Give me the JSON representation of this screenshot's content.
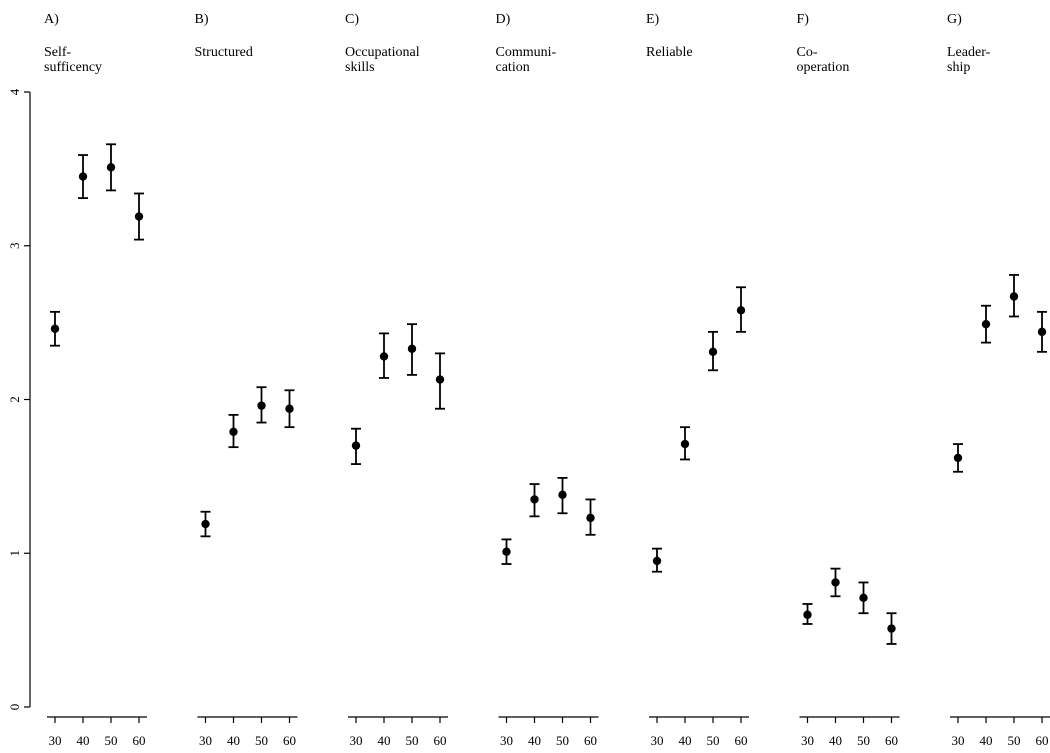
{
  "chart_data": {
    "type": "scatter",
    "subtype": "dot-with-error-bars",
    "grid": false,
    "legend": "none",
    "ylim": [
      0,
      4
    ],
    "y_ticks": [
      0,
      1,
      2,
      3,
      4
    ],
    "x_categories": [
      "30",
      "40",
      "50",
      "60"
    ],
    "point_color": "#000000",
    "panels": [
      {
        "letter": "A)",
        "title_lines": [
          "Self-",
          "sufficency"
        ],
        "points": [
          {
            "x": "30",
            "y": 2.46,
            "lo": 2.35,
            "hi": 2.57
          },
          {
            "x": "40",
            "y": 3.45,
            "lo": 3.31,
            "hi": 3.59
          },
          {
            "x": "50",
            "y": 3.51,
            "lo": 3.36,
            "hi": 3.66
          },
          {
            "x": "60",
            "y": 3.19,
            "lo": 3.04,
            "hi": 3.34
          }
        ]
      },
      {
        "letter": "B)",
        "title_lines": [
          "Structured"
        ],
        "points": [
          {
            "x": "30",
            "y": 1.19,
            "lo": 1.11,
            "hi": 1.27
          },
          {
            "x": "40",
            "y": 1.79,
            "lo": 1.69,
            "hi": 1.9
          },
          {
            "x": "50",
            "y": 1.96,
            "lo": 1.85,
            "hi": 2.08
          },
          {
            "x": "60",
            "y": 1.94,
            "lo": 1.82,
            "hi": 2.06
          }
        ]
      },
      {
        "letter": "C)",
        "title_lines": [
          "Occupational",
          "skills"
        ],
        "points": [
          {
            "x": "30",
            "y": 1.7,
            "lo": 1.58,
            "hi": 1.81
          },
          {
            "x": "40",
            "y": 2.28,
            "lo": 2.14,
            "hi": 2.43
          },
          {
            "x": "50",
            "y": 2.33,
            "lo": 2.16,
            "hi": 2.49
          },
          {
            "x": "60",
            "y": 2.13,
            "lo": 1.94,
            "hi": 2.3
          }
        ]
      },
      {
        "letter": "D)",
        "title_lines": [
          "Communi-",
          "cation"
        ],
        "points": [
          {
            "x": "30",
            "y": 1.01,
            "lo": 0.93,
            "hi": 1.09
          },
          {
            "x": "40",
            "y": 1.35,
            "lo": 1.24,
            "hi": 1.45
          },
          {
            "x": "50",
            "y": 1.38,
            "lo": 1.26,
            "hi": 1.49
          },
          {
            "x": "60",
            "y": 1.23,
            "lo": 1.12,
            "hi": 1.35
          }
        ]
      },
      {
        "letter": "E)",
        "title_lines": [
          "Reliable"
        ],
        "points": [
          {
            "x": "30",
            "y": 0.95,
            "lo": 0.88,
            "hi": 1.03
          },
          {
            "x": "40",
            "y": 1.71,
            "lo": 1.61,
            "hi": 1.82
          },
          {
            "x": "50",
            "y": 2.31,
            "lo": 2.19,
            "hi": 2.44
          },
          {
            "x": "60",
            "y": 2.58,
            "lo": 2.44,
            "hi": 2.73
          }
        ]
      },
      {
        "letter": "F)",
        "title_lines": [
          "Co-",
          "operation"
        ],
        "points": [
          {
            "x": "30",
            "y": 0.6,
            "lo": 0.54,
            "hi": 0.67
          },
          {
            "x": "40",
            "y": 0.81,
            "lo": 0.72,
            "hi": 0.9
          },
          {
            "x": "50",
            "y": 0.71,
            "lo": 0.61,
            "hi": 0.81
          },
          {
            "x": "60",
            "y": 0.51,
            "lo": 0.41,
            "hi": 0.61
          }
        ]
      },
      {
        "letter": "G)",
        "title_lines": [
          "Leader-",
          "ship"
        ],
        "points": [
          {
            "x": "30",
            "y": 1.62,
            "lo": 1.53,
            "hi": 1.71
          },
          {
            "x": "40",
            "y": 2.49,
            "lo": 2.37,
            "hi": 2.61
          },
          {
            "x": "50",
            "y": 2.67,
            "lo": 2.54,
            "hi": 2.81
          },
          {
            "x": "60",
            "y": 2.44,
            "lo": 2.31,
            "hi": 2.57
          }
        ]
      }
    ]
  }
}
